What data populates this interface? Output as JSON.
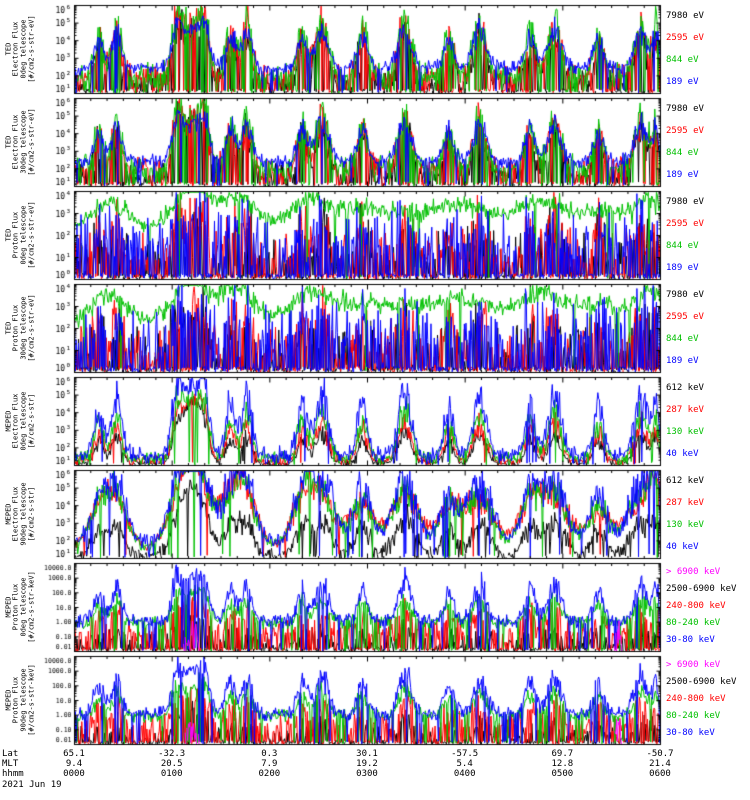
{
  "figure": {
    "background": "#ffffff",
    "date_label": "2021 Jun 19",
    "axis_row_labels": [
      "Lat",
      "MLT",
      "hhmm"
    ]
  },
  "chart_data": {
    "type": "line",
    "yscale": "log",
    "x": {
      "minutes": 360,
      "tick_interval_min": 60,
      "ticks": [
        {
          "lat": "65.1",
          "mlt": "9.4",
          "hhmm": "0000"
        },
        {
          "lat": "-32.3",
          "mlt": "20.5",
          "hhmm": "0100"
        },
        {
          "lat": "0.3",
          "mlt": "7.9",
          "hhmm": "0200"
        },
        {
          "lat": "30.1",
          "mlt": "19.2",
          "hhmm": "0300"
        },
        {
          "lat": "-57.5",
          "mlt": "5.4",
          "hhmm": "0400"
        },
        {
          "lat": "69.7",
          "mlt": "12.8",
          "hhmm": "0500"
        },
        {
          "lat": "-50.7",
          "mlt": "21.4",
          "hhmm": "0600"
        }
      ]
    },
    "event_time_min": 72,
    "spikes": [
      {
        "t": 15,
        "w": 3,
        "h": 0.75
      },
      {
        "t": 26,
        "w": 3,
        "h": 0.95
      },
      {
        "t": 63,
        "w": 3,
        "h": 1.0
      },
      {
        "t": 80,
        "w": 3,
        "h": 0.9
      },
      {
        "t": 96,
        "w": 3,
        "h": 0.9
      },
      {
        "t": 106,
        "w": 3,
        "h": 1.0
      },
      {
        "t": 140,
        "w": 3,
        "h": 0.85
      },
      {
        "t": 152,
        "w": 4,
        "h": 1.05
      },
      {
        "t": 177,
        "w": 3,
        "h": 0.9
      },
      {
        "t": 203,
        "w": 4,
        "h": 1.1
      },
      {
        "t": 230,
        "w": 3,
        "h": 0.8
      },
      {
        "t": 249,
        "w": 4,
        "h": 1.0
      },
      {
        "t": 280,
        "w": 3,
        "h": 0.9
      },
      {
        "t": 295,
        "w": 4,
        "h": 1.05
      },
      {
        "t": 322,
        "w": 3,
        "h": 0.8
      },
      {
        "t": 348,
        "w": 4,
        "h": 1.0
      },
      {
        "t": 357,
        "w": 2,
        "h": 0.85
      }
    ],
    "panels": [
      {
        "ylabel_lines": [
          "TED",
          "Electron Flux",
          "0deg telescope",
          "[#/cm2-s-str-eV]"
        ],
        "yticks": "pow",
        "ylog_min": 1,
        "ylog_max": 6,
        "series": [
          {
            "label": "7980 eV",
            "color": "#000000",
            "base": 1.55,
            "noise": 0.5,
            "amp": 2.6,
            "eamp": 3.0,
            "drop": 0.3
          },
          {
            "label": "2595 eV",
            "color": "#ff0000",
            "base": 1.85,
            "noise": 0.5,
            "amp": 2.8,
            "eamp": 3.1,
            "drop": 0.25
          },
          {
            "label": "844 eV",
            "color": "#00c000",
            "base": 2.05,
            "noise": 0.45,
            "amp": 2.9,
            "eamp": 3.0,
            "drop": 0.18
          },
          {
            "label": "189 eV",
            "color": "#0000ff",
            "base": 2.45,
            "noise": 0.25,
            "amp": 2.0,
            "eamp": 2.2,
            "drop": 0.05
          }
        ]
      },
      {
        "ylabel_lines": [
          "TED",
          "Electron Flux",
          "30deg telescope",
          "[#/cm2-s-str-eV]"
        ],
        "yticks": "pow",
        "ylog_min": 1,
        "ylog_max": 6,
        "series": [
          {
            "label": "7980 eV",
            "color": "#000000",
            "base": 1.55,
            "noise": 0.5,
            "amp": 2.5,
            "eamp": 3.0,
            "drop": 0.3
          },
          {
            "label": "2595 eV",
            "color": "#ff0000",
            "base": 1.85,
            "noise": 0.5,
            "amp": 2.7,
            "eamp": 3.1,
            "drop": 0.25
          },
          {
            "label": "844 eV",
            "color": "#00c000",
            "base": 2.05,
            "noise": 0.45,
            "amp": 2.8,
            "eamp": 3.0,
            "drop": 0.18
          },
          {
            "label": "189 eV",
            "color": "#0000ff",
            "base": 2.45,
            "noise": 0.25,
            "amp": 2.0,
            "eamp": 2.2,
            "drop": 0.05
          }
        ]
      },
      {
        "ylabel_lines": [
          "TED",
          "Proton Flux",
          "0deg telescope",
          "[#/cm2-s-str-eV]"
        ],
        "yticks": "pow",
        "ylog_min": 0,
        "ylog_max": 4,
        "series": [
          {
            "label": "7980 eV",
            "color": "#000000",
            "base": 0.7,
            "noise": 0.85,
            "amp": 1.5,
            "eamp": 1.7,
            "drop": 0.5
          },
          {
            "label": "2595 eV",
            "color": "#ff0000",
            "base": 0.9,
            "noise": 0.8,
            "amp": 1.6,
            "eamp": 1.8,
            "drop": 0.45
          },
          {
            "label": "844 eV",
            "color": "#00c000",
            "base": 2.0,
            "noise": 0.2,
            "amp": 1.0,
            "eamp": 1.1,
            "drop": 0.02,
            "wscale": 3.5
          },
          {
            "label": "189 eV",
            "color": "#0000ff",
            "base": 1.5,
            "noise": 0.95,
            "amp": 1.2,
            "eamp": 1.3,
            "drop": 0.5
          }
        ]
      },
      {
        "ylabel_lines": [
          "TED",
          "Proton Flux",
          "30deg telescope",
          "[#/cm2-s-str-eV]"
        ],
        "yticks": "pow",
        "ylog_min": 0,
        "ylog_max": 4,
        "series": [
          {
            "label": "7980 eV",
            "color": "#000000",
            "base": 0.7,
            "noise": 0.85,
            "amp": 1.4,
            "eamp": 1.7,
            "drop": 0.5
          },
          {
            "label": "2595 eV",
            "color": "#ff0000",
            "base": 0.9,
            "noise": 0.8,
            "amp": 1.5,
            "eamp": 1.8,
            "drop": 0.45
          },
          {
            "label": "844 eV",
            "color": "#00c000",
            "base": 2.0,
            "noise": 0.2,
            "amp": 1.0,
            "eamp": 1.1,
            "drop": 0.02,
            "wscale": 3.5
          },
          {
            "label": "189 eV",
            "color": "#0000ff",
            "base": 1.5,
            "noise": 0.95,
            "amp": 1.2,
            "eamp": 1.3,
            "drop": 0.5
          }
        ]
      },
      {
        "ylabel_lines": [
          "MEPED",
          "Electron Flux",
          "0deg telescope",
          "[#/cm2-s-str]"
        ],
        "yticks": "pow",
        "ylog_min": 1,
        "ylog_max": 6,
        "series": [
          {
            "label": "612 keV",
            "color": "#000000",
            "base": 1.12,
            "noise": 0.12,
            "amp": 1.5,
            "eamp": 3.6,
            "drop": 0.02
          },
          {
            "label": "287 keV",
            "color": "#ff0000",
            "base": 1.25,
            "noise": 0.2,
            "amp": 2.0,
            "eamp": 3.5,
            "drop": 0.03
          },
          {
            "label": "130 keV",
            "color": "#00c000",
            "base": 1.4,
            "noise": 0.25,
            "amp": 2.4,
            "eamp": 3.5,
            "drop": 0.04
          },
          {
            "label": "40 keV",
            "color": "#0000ff",
            "base": 1.6,
            "noise": 0.32,
            "amp": 3.3,
            "eamp": 3.9,
            "drop": 0.05
          }
        ]
      },
      {
        "ylabel_lines": [
          "MEPED",
          "Electron Flux",
          "90deg telescope",
          "[#/cm2-s-str]"
        ],
        "yticks": "pow",
        "ylog_min": 1,
        "ylog_max": 6,
        "series": [
          {
            "label": "612 keV",
            "color": "#000000",
            "base": 1.15,
            "noise": 0.28,
            "amp": 1.8,
            "eamp": 3.2,
            "drop": 0.05,
            "wscale": 1.5
          },
          {
            "label": "287 keV",
            "color": "#ff0000",
            "base": 1.5,
            "noise": 0.15,
            "amp": 2.6,
            "eamp": 3.1,
            "drop": 0.02,
            "wscale": 2.4
          },
          {
            "label": "130 keV",
            "color": "#00c000",
            "base": 1.7,
            "noise": 0.22,
            "amp": 2.8,
            "eamp": 3.2,
            "drop": 0.03,
            "wscale": 2.0
          },
          {
            "label": "40 keV",
            "color": "#0000ff",
            "base": 1.9,
            "noise": 0.3,
            "amp": 3.3,
            "eamp": 3.5,
            "drop": 0.05,
            "wscale": 1.8
          }
        ]
      },
      {
        "ylabel_lines": [
          "MEPED",
          "Proton Flux",
          "0deg telescope",
          "[#/cm2-s-str-keV]"
        ],
        "yticks": "dec",
        "ylog_min": -2,
        "ylog_max": 4,
        "series": [
          {
            "label": "> 6900 keV",
            "color": "#ff00ff",
            "base": -5,
            "noise": 0.3,
            "amp": 1.0,
            "drop": 0,
            "z": 4,
            "spikes": [
              {
                "t": 72,
                "w": 5,
                "h": 4.2
              },
              {
                "t": 334,
                "w": 3,
                "h": 3.9
              }
            ]
          },
          {
            "label": "2500-6900 keV",
            "color": "#000000",
            "base": -1.6,
            "noise": 0.5,
            "amp": 1.0,
            "eamp": 1.8,
            "drop": 0.45,
            "z": 0
          },
          {
            "label": "240-800 keV",
            "color": "#ff0000",
            "base": -0.7,
            "noise": 0.55,
            "amp": 1.2,
            "eamp": 2.0,
            "drop": 0.4,
            "z": 1
          },
          {
            "label": "80-240 keV",
            "color": "#00c000",
            "base": -0.05,
            "noise": 0.28,
            "amp": 1.5,
            "eamp": 2.1,
            "drop": 0.1,
            "z": 2
          },
          {
            "label": "30-80 keV",
            "color": "#0000ff",
            "base": 0.1,
            "noise": 0.3,
            "amp": 2.3,
            "eamp": 3.0,
            "drop": 0.08,
            "z": 3
          }
        ]
      },
      {
        "ylabel_lines": [
          "MEPED",
          "Proton Flux",
          "90deg telescope",
          "[#/cm2-s-str-keV]"
        ],
        "yticks": "dec",
        "ylog_min": -2,
        "ylog_max": 4,
        "series": [
          {
            "label": "> 6900 keV",
            "color": "#ff00ff",
            "base": -5,
            "noise": 0.3,
            "amp": 1.0,
            "drop": 0,
            "z": 4,
            "spikes": [
              {
                "t": 72,
                "w": 5,
                "h": 4.2
              },
              {
                "t": 334,
                "w": 3,
                "h": 3.9
              }
            ]
          },
          {
            "label": "2500-6900 keV",
            "color": "#000000",
            "base": -1.6,
            "noise": 0.5,
            "amp": 1.0,
            "eamp": 1.8,
            "drop": 0.45,
            "z": 0
          },
          {
            "label": "240-800 keV",
            "color": "#ff0000",
            "base": -0.7,
            "noise": 0.55,
            "amp": 1.3,
            "eamp": 2.0,
            "drop": 0.4,
            "z": 1
          },
          {
            "label": "80-240 keV",
            "color": "#00c000",
            "base": -0.05,
            "noise": 0.28,
            "amp": 1.6,
            "eamp": 2.1,
            "drop": 0.1,
            "z": 2
          },
          {
            "label": "30-80 keV",
            "color": "#0000ff",
            "base": 0.1,
            "noise": 0.3,
            "amp": 2.4,
            "eamp": 3.0,
            "drop": 0.08,
            "z": 3
          }
        ]
      }
    ]
  }
}
